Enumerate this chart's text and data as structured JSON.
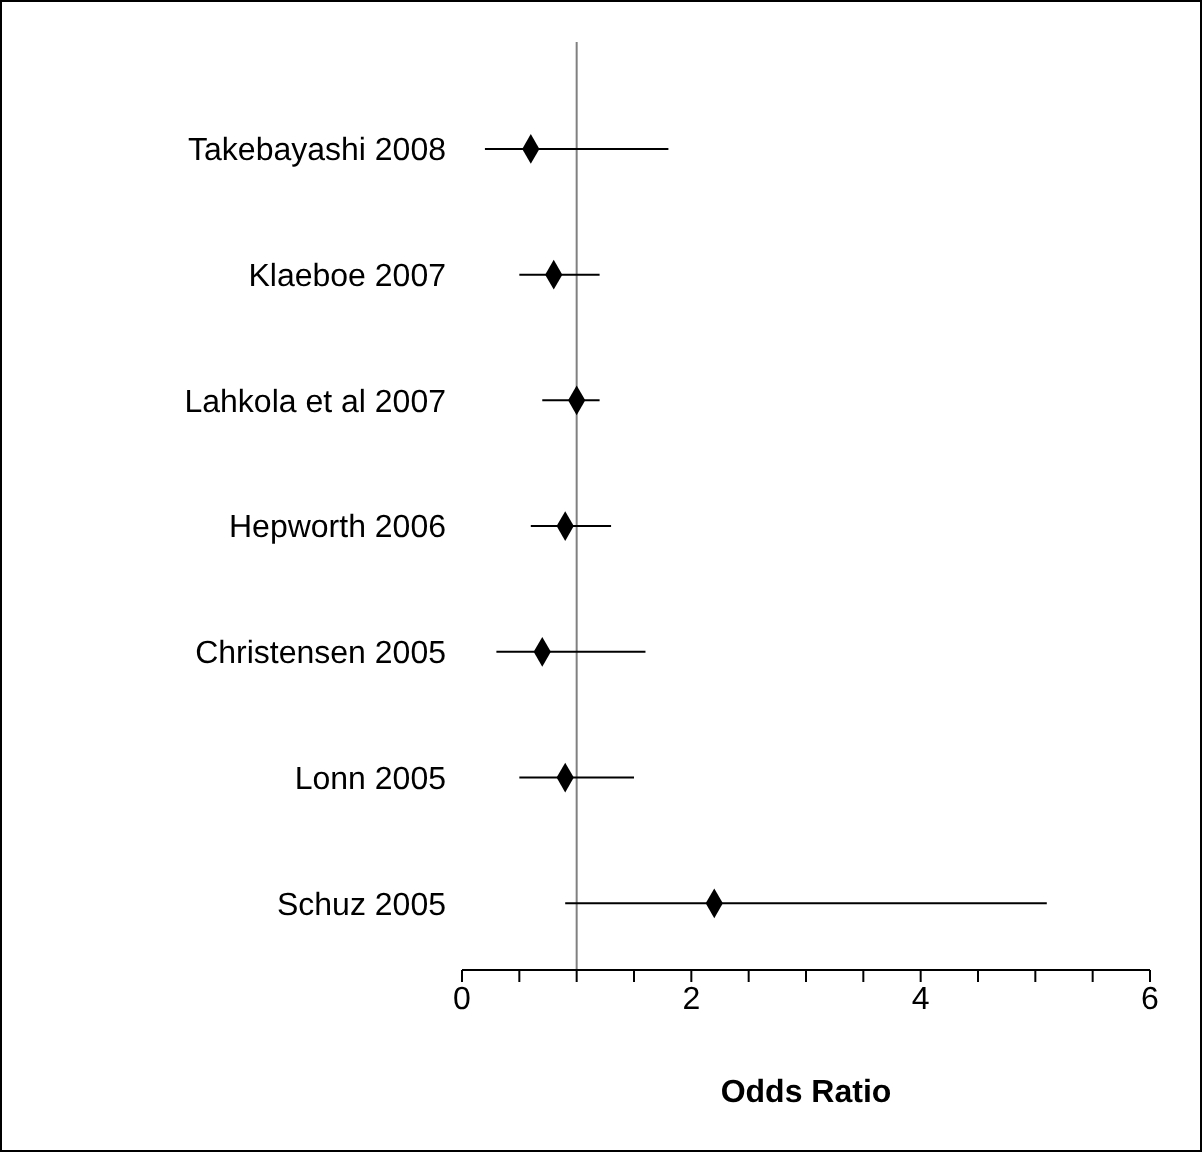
{
  "chart_data": {
    "type": "scatter",
    "orientation": "horizontal",
    "xlabel": "Odds Ratio",
    "categories": [
      "Takebayashi 2008",
      "Klaeboe 2007 ",
      "Lahkola et al 2007",
      "Hepworth 2006",
      "Christensen 2005",
      "Lonn  2005",
      "Schuz 2005"
    ],
    "values": [
      0.6,
      0.8,
      1.0,
      0.9,
      0.7,
      0.9,
      2.2
    ],
    "errors": [
      [
        0.2,
        1.8
      ],
      [
        0.5,
        1.2
      ],
      [
        0.7,
        1.2
      ],
      [
        0.6,
        1.3
      ],
      [
        0.3,
        1.6
      ],
      [
        0.5,
        1.5
      ],
      [
        0.9,
        5.1
      ]
    ],
    "color": "#000000",
    "marker": "diamond",
    "grid": false,
    "xlim": [
      0,
      6
    ],
    "xticks": [
      0,
      {
        "value": 0.5,
        "label": null
      },
      {
        "value": 1,
        "label": null
      },
      {
        "value": 1.5,
        "label": null
      },
      2,
      {
        "value": 2.5,
        "label": null
      },
      {
        "value": 3,
        "label": null
      },
      {
        "value": 3.5,
        "label": null
      },
      4,
      {
        "value": 4.5,
        "label": null
      },
      {
        "value": 5,
        "label": null
      },
      {
        "value": 5.5,
        "label": null
      },
      6
    ],
    "ref_lines": [
      {
        "axis": "x",
        "value": 1,
        "color": "#808080"
      }
    ]
  }
}
